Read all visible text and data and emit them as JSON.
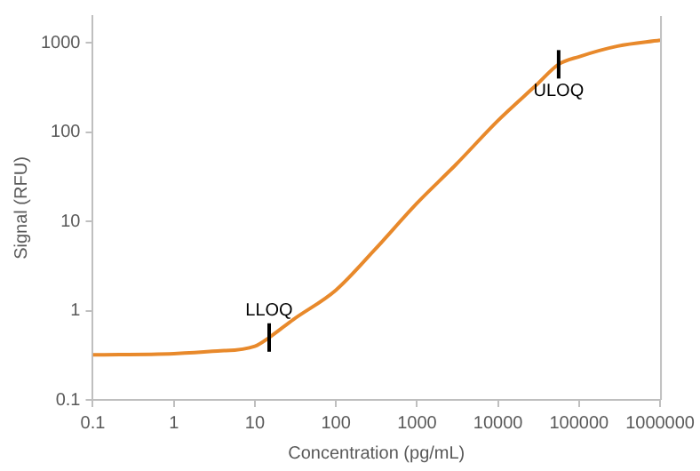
{
  "chart_data": {
    "type": "line",
    "xlabel": "Concentration (pg/mL)",
    "ylabel": "Signal (RFU)",
    "log": "xy",
    "xlim": [
      0.1,
      1000000
    ],
    "xticks": [
      0.1,
      1,
      10,
      100,
      1000,
      10000,
      100000,
      1000000
    ],
    "ylim": [
      0.1,
      2000
    ],
    "yticks": [
      0.1,
      1,
      10,
      100,
      1000
    ],
    "grid": false,
    "legend": false,
    "marker": "none",
    "line_style": "solid",
    "series": [
      {
        "color": "#e8892b",
        "x": [
          0.1,
          1,
          3,
          10,
          15,
          30,
          100,
          300,
          1000,
          3000,
          10000,
          30000,
          56000,
          100000,
          300000,
          1000000
        ],
        "values": [
          0.32,
          0.33,
          0.35,
          0.4,
          0.5,
          0.8,
          1.7,
          4.8,
          16,
          43,
          135,
          340,
          575,
          700,
          920,
          1070
        ]
      }
    ],
    "annotations": [
      {
        "text": "LLOQ",
        "x": 15,
        "y": 0.5
      },
      {
        "text": "ULOQ",
        "x": 56000,
        "y": 575
      }
    ]
  }
}
